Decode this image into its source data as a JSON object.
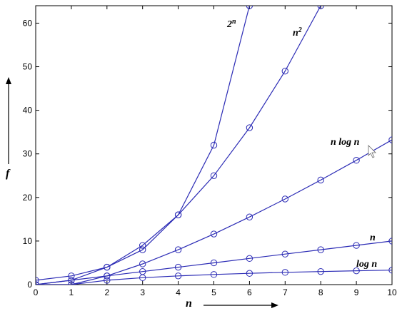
{
  "chart_data": {
    "type": "line",
    "xlabel": "n",
    "ylabel": "f",
    "xlim": [
      0,
      10
    ],
    "ylim": [
      0,
      64
    ],
    "xticks": [
      0,
      1,
      2,
      3,
      4,
      5,
      6,
      7,
      8,
      9,
      10
    ],
    "yticks": [
      0,
      10,
      20,
      30,
      40,
      50,
      60
    ],
    "grid": false,
    "line_color": "#2b2bb5",
    "series": [
      {
        "name": "log n",
        "x": [
          0,
          1,
          2,
          3,
          4,
          5,
          6,
          7,
          8,
          9,
          10
        ],
        "y": [
          0,
          0,
          1,
          1.58,
          2,
          2.32,
          2.58,
          2.81,
          3,
          3.17,
          3.32
        ]
      },
      {
        "name": "n",
        "x": [
          0,
          1,
          2,
          3,
          4,
          5,
          6,
          7,
          8,
          9,
          10
        ],
        "y": [
          0,
          1,
          2,
          3,
          4,
          5,
          6,
          7,
          8,
          9,
          10
        ]
      },
      {
        "name": "n log n",
        "x": [
          0,
          1,
          2,
          3,
          4,
          5,
          6,
          7,
          8,
          9,
          10
        ],
        "y": [
          0,
          0,
          2,
          4.75,
          8,
          11.61,
          15.51,
          19.65,
          24,
          28.53,
          33.22
        ]
      },
      {
        "name": "n2",
        "x": [
          0,
          1,
          2,
          3,
          4,
          5,
          6,
          7,
          8
        ],
        "y": [
          0,
          1,
          4,
          9,
          16,
          25,
          36,
          49,
          64
        ]
      },
      {
        "name": "2n",
        "x": [
          0,
          1,
          2,
          3,
          4,
          5,
          6
        ],
        "y": [
          1,
          2,
          4,
          8,
          16,
          32,
          64
        ]
      }
    ]
  }
}
